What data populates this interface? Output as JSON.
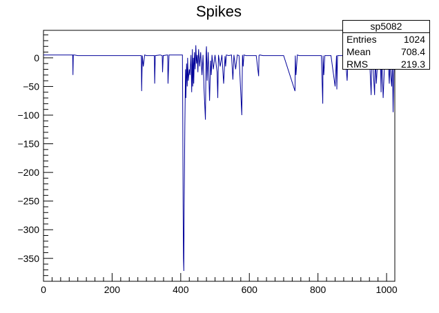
{
  "chart_data": {
    "type": "line",
    "title": "Spikes",
    "xlabel": "",
    "ylabel": "",
    "xlim": [
      0,
      1024
    ],
    "ylim": [
      -390,
      48
    ],
    "xticks": [
      0,
      200,
      400,
      600,
      800,
      1000
    ],
    "xtick_labels": [
      "0",
      "200",
      "400",
      "600",
      "800",
      "1000"
    ],
    "yticks": [
      0,
      -50,
      -100,
      -150,
      -200,
      -250,
      -300,
      -350
    ],
    "ytick_labels": [
      "0",
      "−50",
      "−100",
      "−150",
      "−200",
      "−250",
      "−300",
      "−350"
    ],
    "grid": false,
    "line_color": "#000099",
    "series": [
      {
        "x": [
          0,
          85,
          86,
          87,
          90,
          100,
          200,
          285,
          286,
          288,
          291,
          295,
          300,
          323,
          324,
          326,
          340,
          346,
          347,
          349,
          360,
          362,
          363,
          366,
          380,
          405,
          406,
          407,
          408,
          409,
          410,
          412,
          414,
          415,
          417,
          419,
          420,
          422,
          425,
          427,
          430,
          432,
          434,
          435,
          437,
          438,
          440,
          442,
          444,
          446,
          448,
          450,
          452,
          455,
          458,
          462,
          465,
          468,
          472,
          474,
          475,
          477,
          480,
          484,
          487,
          489,
          491,
          495,
          500,
          506,
          508,
          510,
          515,
          520,
          525,
          529,
          531,
          533,
          540,
          548,
          552,
          555,
          560,
          565,
          570,
          578,
          580,
          582,
          584,
          590,
          600,
          620,
          627,
          628,
          630,
          640,
          700,
          733,
          734,
          736,
          740,
          745,
          750,
          800,
          810,
          814,
          815,
          817,
          820,
          830,
          838,
          850,
          854,
          855,
          857,
          860,
          870,
          880,
          885,
          888,
          890,
          900,
          950,
          955,
          957,
          960,
          965,
          967,
          970,
          975,
          982,
          984,
          986,
          990,
          995,
          1000,
          1005,
          1008,
          1010,
          1012,
          1015,
          1017,
          1019,
          1021,
          1023
        ],
        "y": [
          5,
          5,
          -30,
          5,
          5,
          4,
          4,
          4,
          -58,
          4,
          -15,
          5,
          4,
          4,
          -45,
          4,
          5,
          4,
          -25,
          4,
          5,
          5,
          -45,
          5,
          5,
          5,
          -110,
          -260,
          -350,
          -372,
          -260,
          -120,
          -20,
          -70,
          -10,
          -50,
          0,
          -40,
          -20,
          -30,
          5,
          -60,
          15,
          -50,
          0,
          -45,
          10,
          -20,
          22,
          -10,
          5,
          -25,
          15,
          -15,
          10,
          -30,
          5,
          -55,
          -108,
          8,
          20,
          -40,
          10,
          -75,
          -5,
          -30,
          5,
          -20,
          5,
          -25,
          -70,
          5,
          -15,
          5,
          -45,
          3,
          -15,
          5,
          4,
          5,
          -38,
          5,
          -20,
          5,
          4,
          -100,
          5,
          -15,
          5,
          4,
          4,
          4,
          -32,
          4,
          5,
          4,
          4,
          -58,
          4,
          -30,
          5,
          4,
          4,
          4,
          4,
          -80,
          4,
          -30,
          4,
          4,
          4,
          -50,
          4,
          -55,
          4,
          4,
          4,
          3,
          -40,
          3,
          4,
          4,
          4,
          -65,
          4,
          -10,
          -65,
          4,
          -45,
          4,
          4,
          -60,
          4,
          -70,
          4,
          3,
          -10,
          -45,
          0,
          -30,
          -50,
          5,
          -95,
          -30,
          5
        ]
      }
    ]
  },
  "stats_box": {
    "name": "sp5082",
    "rows": [
      {
        "label": "Entries",
        "value": "1024"
      },
      {
        "label": "Mean",
        "value": "708.4"
      },
      {
        "label": "RMS",
        "value": "219.3"
      }
    ]
  }
}
